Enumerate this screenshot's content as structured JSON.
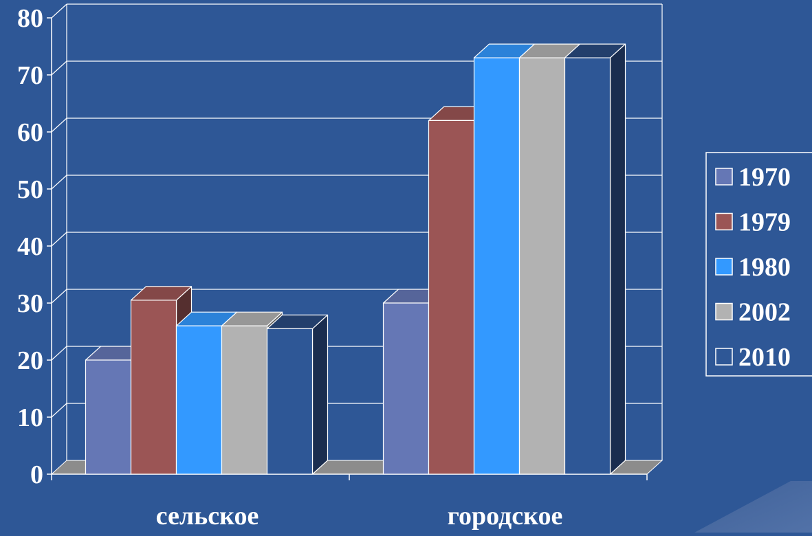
{
  "chart_data": {
    "type": "bar",
    "title": "",
    "xlabel": "",
    "ylabel": "",
    "categories": [
      "сельское",
      "городское"
    ],
    "series": [
      {
        "name": "1970",
        "values": [
          20,
          30
        ],
        "color": "#6577B5"
      },
      {
        "name": "1979",
        "values": [
          30.5,
          62
        ],
        "color": "#9B5555"
      },
      {
        "name": "1980",
        "values": [
          26,
          73
        ],
        "color": "#3399FF"
      },
      {
        "name": "2002",
        "values": [
          26,
          73
        ],
        "color": "#B2B2B2"
      },
      {
        "name": "2010",
        "values": [
          25.5,
          73
        ],
        "color": "#2E5796"
      }
    ],
    "ylim": [
      0,
      80
    ],
    "yticks": [
      0,
      10,
      20,
      30,
      40,
      50,
      60,
      70,
      80
    ],
    "grid": true,
    "legend": "right",
    "style": "3d-bar"
  }
}
